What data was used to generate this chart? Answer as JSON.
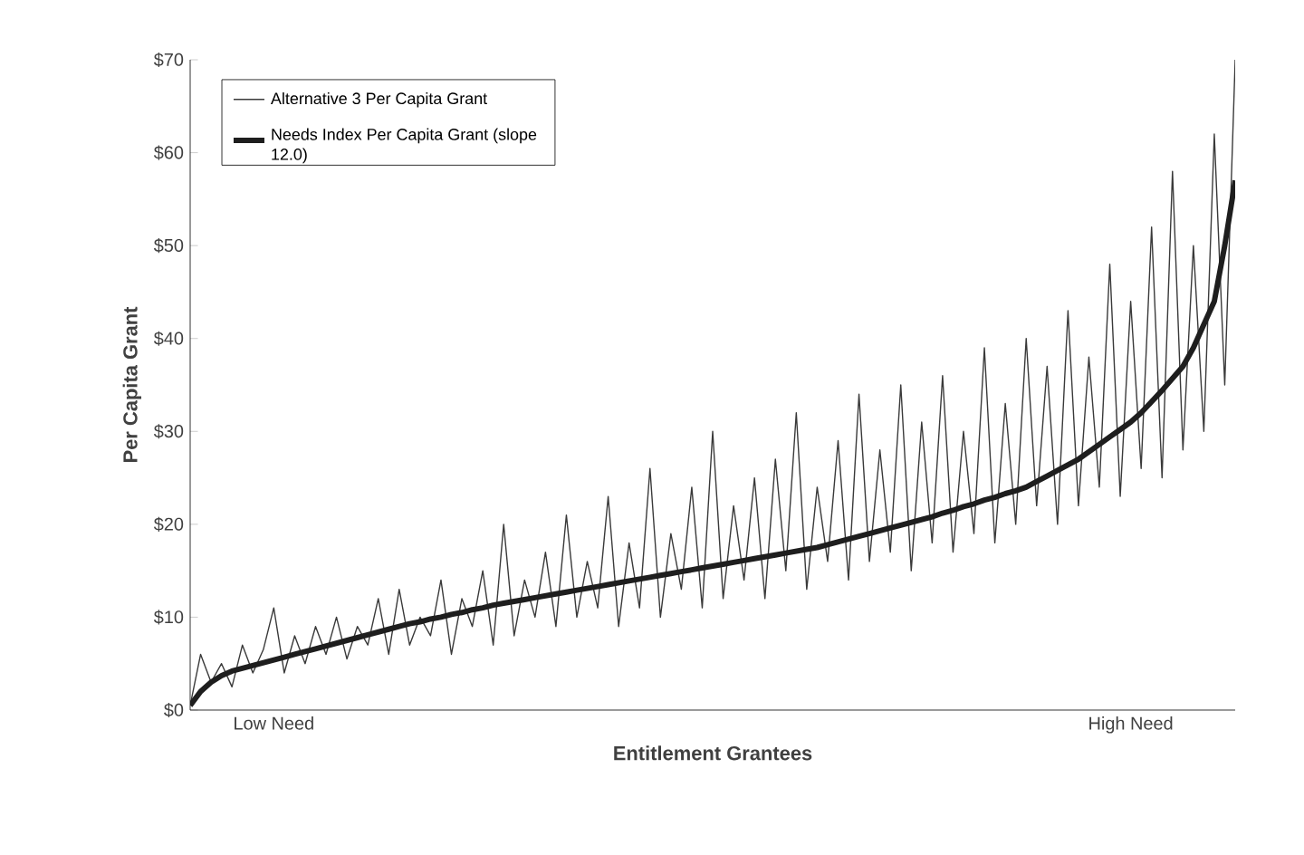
{
  "chart_data": {
    "type": "line",
    "xlabel": "Entitlement Grantees",
    "ylabel": "Per Capita Grant",
    "categories": [
      null,
      null,
      null,
      null,
      null,
      null,
      null,
      null,
      "Low Need",
      null,
      null,
      null,
      null,
      null,
      null,
      null,
      null,
      null,
      null,
      null,
      null,
      null,
      null,
      null,
      null,
      null,
      null,
      null,
      null,
      null,
      null,
      null,
      null,
      null,
      null,
      null,
      null,
      null,
      null,
      null,
      null,
      null,
      null,
      null,
      null,
      null,
      null,
      null,
      null,
      null,
      null,
      null,
      null,
      null,
      null,
      null,
      null,
      null,
      null,
      null,
      null,
      null,
      null,
      null,
      null,
      null,
      null,
      null,
      null,
      null,
      null,
      null,
      null,
      null,
      null,
      null,
      null,
      null,
      null,
      null,
      null,
      null,
      null,
      null,
      null,
      null,
      null,
      null,
      null,
      null,
      "High Need",
      null,
      null,
      null,
      null,
      null,
      null,
      null,
      null,
      null,
      null
    ],
    "ylim": [
      0,
      70
    ],
    "yticks": [
      {
        "value": 0,
        "label": "$0"
      },
      {
        "value": 10,
        "label": "$10"
      },
      {
        "value": 20,
        "label": "$20"
      },
      {
        "value": 30,
        "label": "$30"
      },
      {
        "value": 40,
        "label": "$40"
      },
      {
        "value": 50,
        "label": "$50"
      },
      {
        "value": 60,
        "label": "$60"
      },
      {
        "value": 70,
        "label": "$70"
      }
    ],
    "legend": "top left",
    "grid": false,
    "series": [
      {
        "name": "Alternative 3 Per Capita Grant",
        "color": "#3a3a3a",
        "values": [
          0.5,
          6,
          3,
          5,
          2.5,
          7,
          4,
          6.5,
          11,
          4,
          8,
          5,
          9,
          6,
          10,
          5.5,
          9,
          7,
          12,
          6,
          13,
          7,
          10,
          8,
          14,
          6,
          12,
          9,
          15,
          7,
          20,
          8,
          14,
          10,
          17,
          9,
          21,
          10,
          16,
          11,
          23,
          9,
          18,
          11,
          26,
          10,
          19,
          13,
          24,
          11,
          30,
          12,
          22,
          14,
          25,
          12,
          27,
          15,
          32,
          13,
          24,
          16,
          29,
          14,
          34,
          16,
          28,
          17,
          35,
          15,
          31,
          18,
          36,
          17,
          30,
          19,
          39,
          18,
          33,
          20,
          40,
          22,
          37,
          20,
          43,
          22,
          38,
          24,
          48,
          23,
          44,
          26,
          52,
          25,
          58,
          28,
          50,
          30,
          62,
          35,
          70
        ]
      },
      {
        "name": "Needs Index Per Capita Grant (slope 12.0)",
        "color": "#1e1e1e",
        "values": [
          0.5,
          2,
          3,
          3.7,
          4.2,
          4.5,
          4.8,
          5.1,
          5.4,
          5.7,
          6,
          6.3,
          6.6,
          6.9,
          7.2,
          7.5,
          7.8,
          8.1,
          8.4,
          8.7,
          9,
          9.3,
          9.5,
          9.8,
          10,
          10.3,
          10.5,
          10.8,
          11,
          11.3,
          11.5,
          11.7,
          11.9,
          12.1,
          12.3,
          12.5,
          12.7,
          12.9,
          13.1,
          13.3,
          13.5,
          13.7,
          13.9,
          14.1,
          14.3,
          14.5,
          14.7,
          14.9,
          15.1,
          15.3,
          15.5,
          15.7,
          15.9,
          16.1,
          16.3,
          16.5,
          16.7,
          16.9,
          17.1,
          17.3,
          17.5,
          17.8,
          18.1,
          18.4,
          18.7,
          19,
          19.3,
          19.6,
          19.9,
          20.2,
          20.5,
          20.8,
          21.2,
          21.5,
          21.9,
          22.2,
          22.6,
          22.9,
          23.3,
          23.6,
          24,
          24.6,
          25.2,
          25.8,
          26.4,
          27,
          27.8,
          28.6,
          29.4,
          30.2,
          31,
          32,
          33.2,
          34.4,
          35.7,
          37,
          39,
          41.5,
          44,
          50,
          57
        ]
      }
    ]
  }
}
